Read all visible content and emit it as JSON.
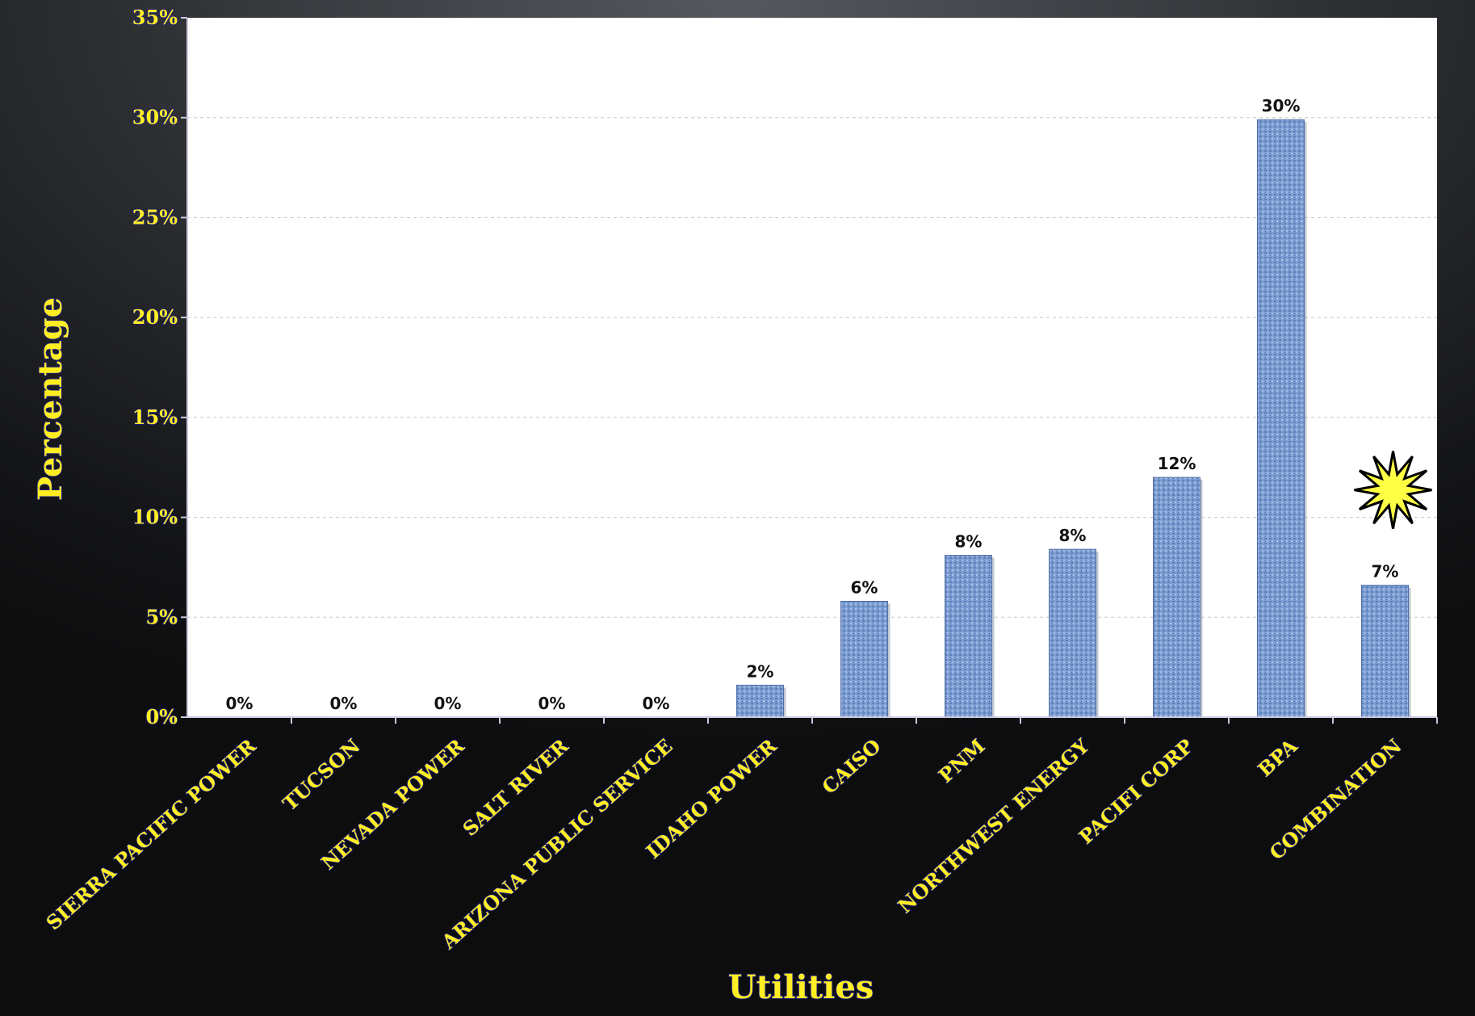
{
  "chart_data": {
    "type": "bar",
    "title": "",
    "xlabel": "Utilities",
    "ylabel": "Percentage",
    "ylim": [
      0,
      35
    ],
    "yticks": [
      "0%",
      "5%",
      "10%",
      "15%",
      "20%",
      "25%",
      "30%",
      "35%"
    ],
    "ytick_values": [
      0,
      5,
      10,
      15,
      20,
      25,
      30,
      35
    ],
    "grid": "horizontal dashed",
    "categories": [
      "SIERRA PACIFIC POWER",
      "TUCSON",
      "NEVADA POWER",
      "SALT RIVER",
      "ARIZONA PUBLIC SERVICE",
      "IDAHO POWER",
      "CAISO",
      "PNM",
      "NORTHWEST ENERGY",
      "PACIFI CORP",
      "BPA",
      "COMBINATION"
    ],
    "values": [
      0,
      0,
      0,
      0,
      0,
      1.6,
      5.8,
      8.1,
      8.4,
      12.0,
      29.9,
      6.6
    ],
    "data_labels": [
      "0%",
      "0%",
      "0%",
      "0%",
      "0%",
      "2%",
      "6%",
      "8%",
      "8%",
      "12%",
      "30%",
      "7%"
    ],
    "annotations": [
      {
        "type": "starburst",
        "category": "COMBINATION"
      }
    ],
    "colors": {
      "bar": "#7f9fd3",
      "bar_dark": "#4f6fa8",
      "plot_background": "#ffffff",
      "tick_text": "#ffee22",
      "tick_outline": "#1a1a8a",
      "starburst_fill": "#ffff44"
    }
  }
}
